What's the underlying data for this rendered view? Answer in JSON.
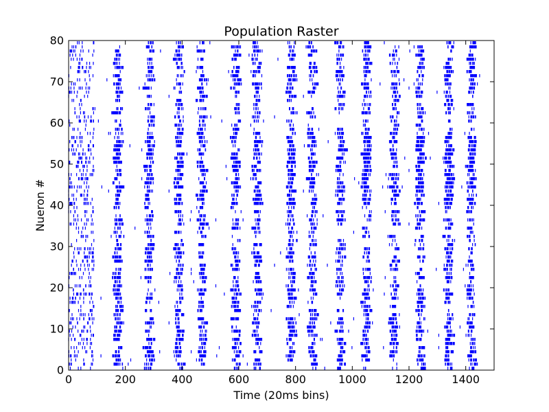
{
  "chart_data": {
    "type": "scatter",
    "title": "Population Raster",
    "xlabel": "Time (20ms bins)",
    "ylabel": "Nueron #",
    "xlim": [
      0,
      1500
    ],
    "ylim": [
      0,
      80
    ],
    "xticks": [
      0,
      200,
      400,
      600,
      800,
      1000,
      1200,
      1400
    ],
    "yticks": [
      0,
      10,
      20,
      30,
      40,
      50,
      60,
      70,
      80
    ],
    "xtick_labels": [
      "0",
      "200",
      "400",
      "600",
      "800",
      "1000",
      "1200",
      "1400"
    ],
    "ytick_labels": [
      "0",
      "10",
      "20",
      "30",
      "40",
      "50",
      "60",
      "70",
      "80"
    ],
    "grid": false,
    "legend": "none",
    "marker": "vertical-tick",
    "spike_color": "#0000ff",
    "neuron_count": 80,
    "time_bins": 1450,
    "burst_centers": [
      175,
      285,
      390,
      470,
      590,
      665,
      785,
      860,
      960,
      1050,
      1150,
      1240,
      1340,
      1420
    ],
    "series": [
      {
        "neurons_from": 0,
        "neurons_to": 79,
        "description_of_pattern": "periodic population bursts roughly every 90-110 bins"
      }
    ]
  }
}
